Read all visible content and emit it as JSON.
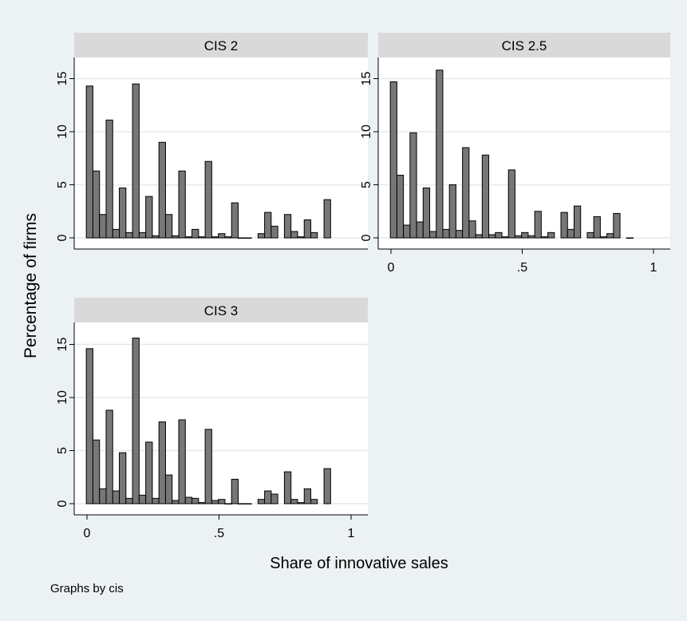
{
  "chart_data": {
    "type": "bar",
    "ylabel": "Percentage of firms",
    "xlabel": "Share of innovative sales",
    "note": "Graphs by cis",
    "xlim": [
      0,
      1
    ],
    "ylim": [
      0,
      15
    ],
    "x_ticks": [
      "0",
      ".5",
      "1"
    ],
    "y_ticks": [
      "0",
      "5",
      "10",
      "15"
    ],
    "bar_width": 0.025,
    "colors": {
      "bar": "#777777",
      "bar_edge": "#000000",
      "strip": "#d9d9d9",
      "plot_bg": "#ffffff",
      "grid": "#e6e9ea"
    },
    "panels": [
      {
        "title": "CIS 2",
        "x": [
          0.01,
          0.035,
          0.06,
          0.085,
          0.11,
          0.135,
          0.16,
          0.185,
          0.21,
          0.235,
          0.26,
          0.285,
          0.31,
          0.335,
          0.36,
          0.385,
          0.41,
          0.435,
          0.46,
          0.485,
          0.51,
          0.535,
          0.56,
          0.585,
          0.61,
          0.66,
          0.685,
          0.71,
          0.76,
          0.785,
          0.81,
          0.835,
          0.86,
          0.91
        ],
        "values": [
          14.3,
          6.3,
          2.2,
          11.1,
          0.8,
          4.7,
          0.5,
          14.5,
          0.5,
          3.9,
          0.2,
          9.0,
          2.2,
          0.2,
          6.3,
          0.1,
          0.8,
          0.1,
          7.2,
          0.1,
          0.4,
          0.1,
          3.3,
          0.0,
          0.0,
          0.4,
          2.4,
          1.1,
          2.2,
          0.6,
          0.1,
          1.7,
          0.5,
          3.6
        ]
      },
      {
        "title": "CIS 2.5",
        "x": [
          0.01,
          0.035,
          0.06,
          0.085,
          0.11,
          0.135,
          0.16,
          0.185,
          0.21,
          0.235,
          0.26,
          0.285,
          0.31,
          0.335,
          0.36,
          0.385,
          0.41,
          0.435,
          0.46,
          0.485,
          0.51,
          0.535,
          0.56,
          0.585,
          0.61,
          0.66,
          0.685,
          0.71,
          0.76,
          0.785,
          0.81,
          0.835,
          0.86,
          0.91
        ],
        "values": [
          14.7,
          5.9,
          1.2,
          9.9,
          1.5,
          4.7,
          0.6,
          15.8,
          0.8,
          5.0,
          0.7,
          8.5,
          1.6,
          0.3,
          7.8,
          0.3,
          0.5,
          0.1,
          6.4,
          0.2,
          0.5,
          0.2,
          2.5,
          0.1,
          0.5,
          2.4,
          0.8,
          3.0,
          0.5,
          2.0,
          0.1,
          0.4,
          2.3,
          0.0
        ]
      },
      {
        "title": "CIS 3",
        "x": [
          0.01,
          0.035,
          0.06,
          0.085,
          0.11,
          0.135,
          0.16,
          0.185,
          0.21,
          0.235,
          0.26,
          0.285,
          0.31,
          0.335,
          0.36,
          0.385,
          0.41,
          0.435,
          0.46,
          0.485,
          0.51,
          0.535,
          0.56,
          0.585,
          0.61,
          0.66,
          0.685,
          0.71,
          0.76,
          0.785,
          0.81,
          0.835,
          0.86,
          0.91
        ],
        "values": [
          14.6,
          6.0,
          1.4,
          8.8,
          1.2,
          4.8,
          0.5,
          15.6,
          0.8,
          5.8,
          0.5,
          7.7,
          2.7,
          0.3,
          7.9,
          0.6,
          0.5,
          0.1,
          7.0,
          0.3,
          0.4,
          0.0,
          2.3,
          0.0,
          0.0,
          0.4,
          1.2,
          0.9,
          3.0,
          0.4,
          0.1,
          1.4,
          0.4,
          3.3
        ]
      }
    ]
  }
}
